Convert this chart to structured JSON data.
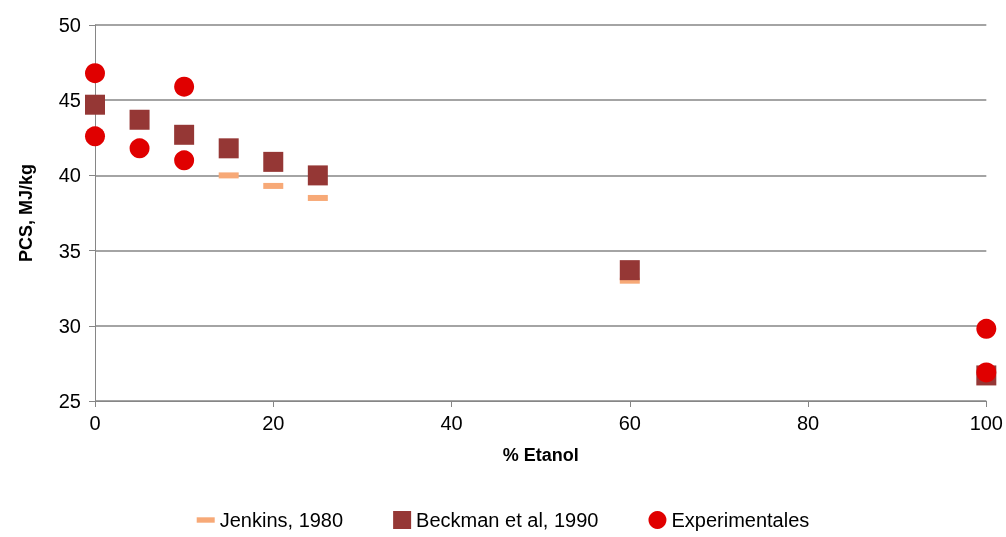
{
  "chart_data": {
    "type": "scatter",
    "xlabel": "% Etanol",
    "ylabel": "PCS, MJ/kg",
    "xlim": [
      0,
      100
    ],
    "xticks": [
      0,
      20,
      40,
      60,
      80,
      100
    ],
    "ylim": [
      25,
      50
    ],
    "yticks": [
      25,
      30,
      35,
      40,
      45,
      50
    ],
    "grid": "y",
    "legend": "bottom",
    "series": [
      {
        "name": "Jenkins, 1980",
        "color": "#f7a977",
        "x": [
          15,
          20,
          25,
          60
        ],
        "values": [
          40.0,
          39.3,
          38.5,
          33.0
        ]
      },
      {
        "name": "Beckman et al, 1990",
        "color": "#953735",
        "marker": "square",
        "x": [
          0,
          5,
          10,
          15,
          20,
          25,
          60,
          100
        ],
        "values": [
          44.7,
          43.7,
          42.7,
          41.8,
          40.9,
          40.0,
          33.7,
          26.7
        ]
      },
      {
        "name": "Experimentales",
        "color": "#e00000",
        "marker": "circle",
        "x": [
          0,
          0,
          5,
          10,
          10,
          100,
          100
        ],
        "values": [
          46.8,
          42.6,
          41.8,
          45.9,
          41.0,
          29.8,
          26.9
        ]
      }
    ]
  }
}
